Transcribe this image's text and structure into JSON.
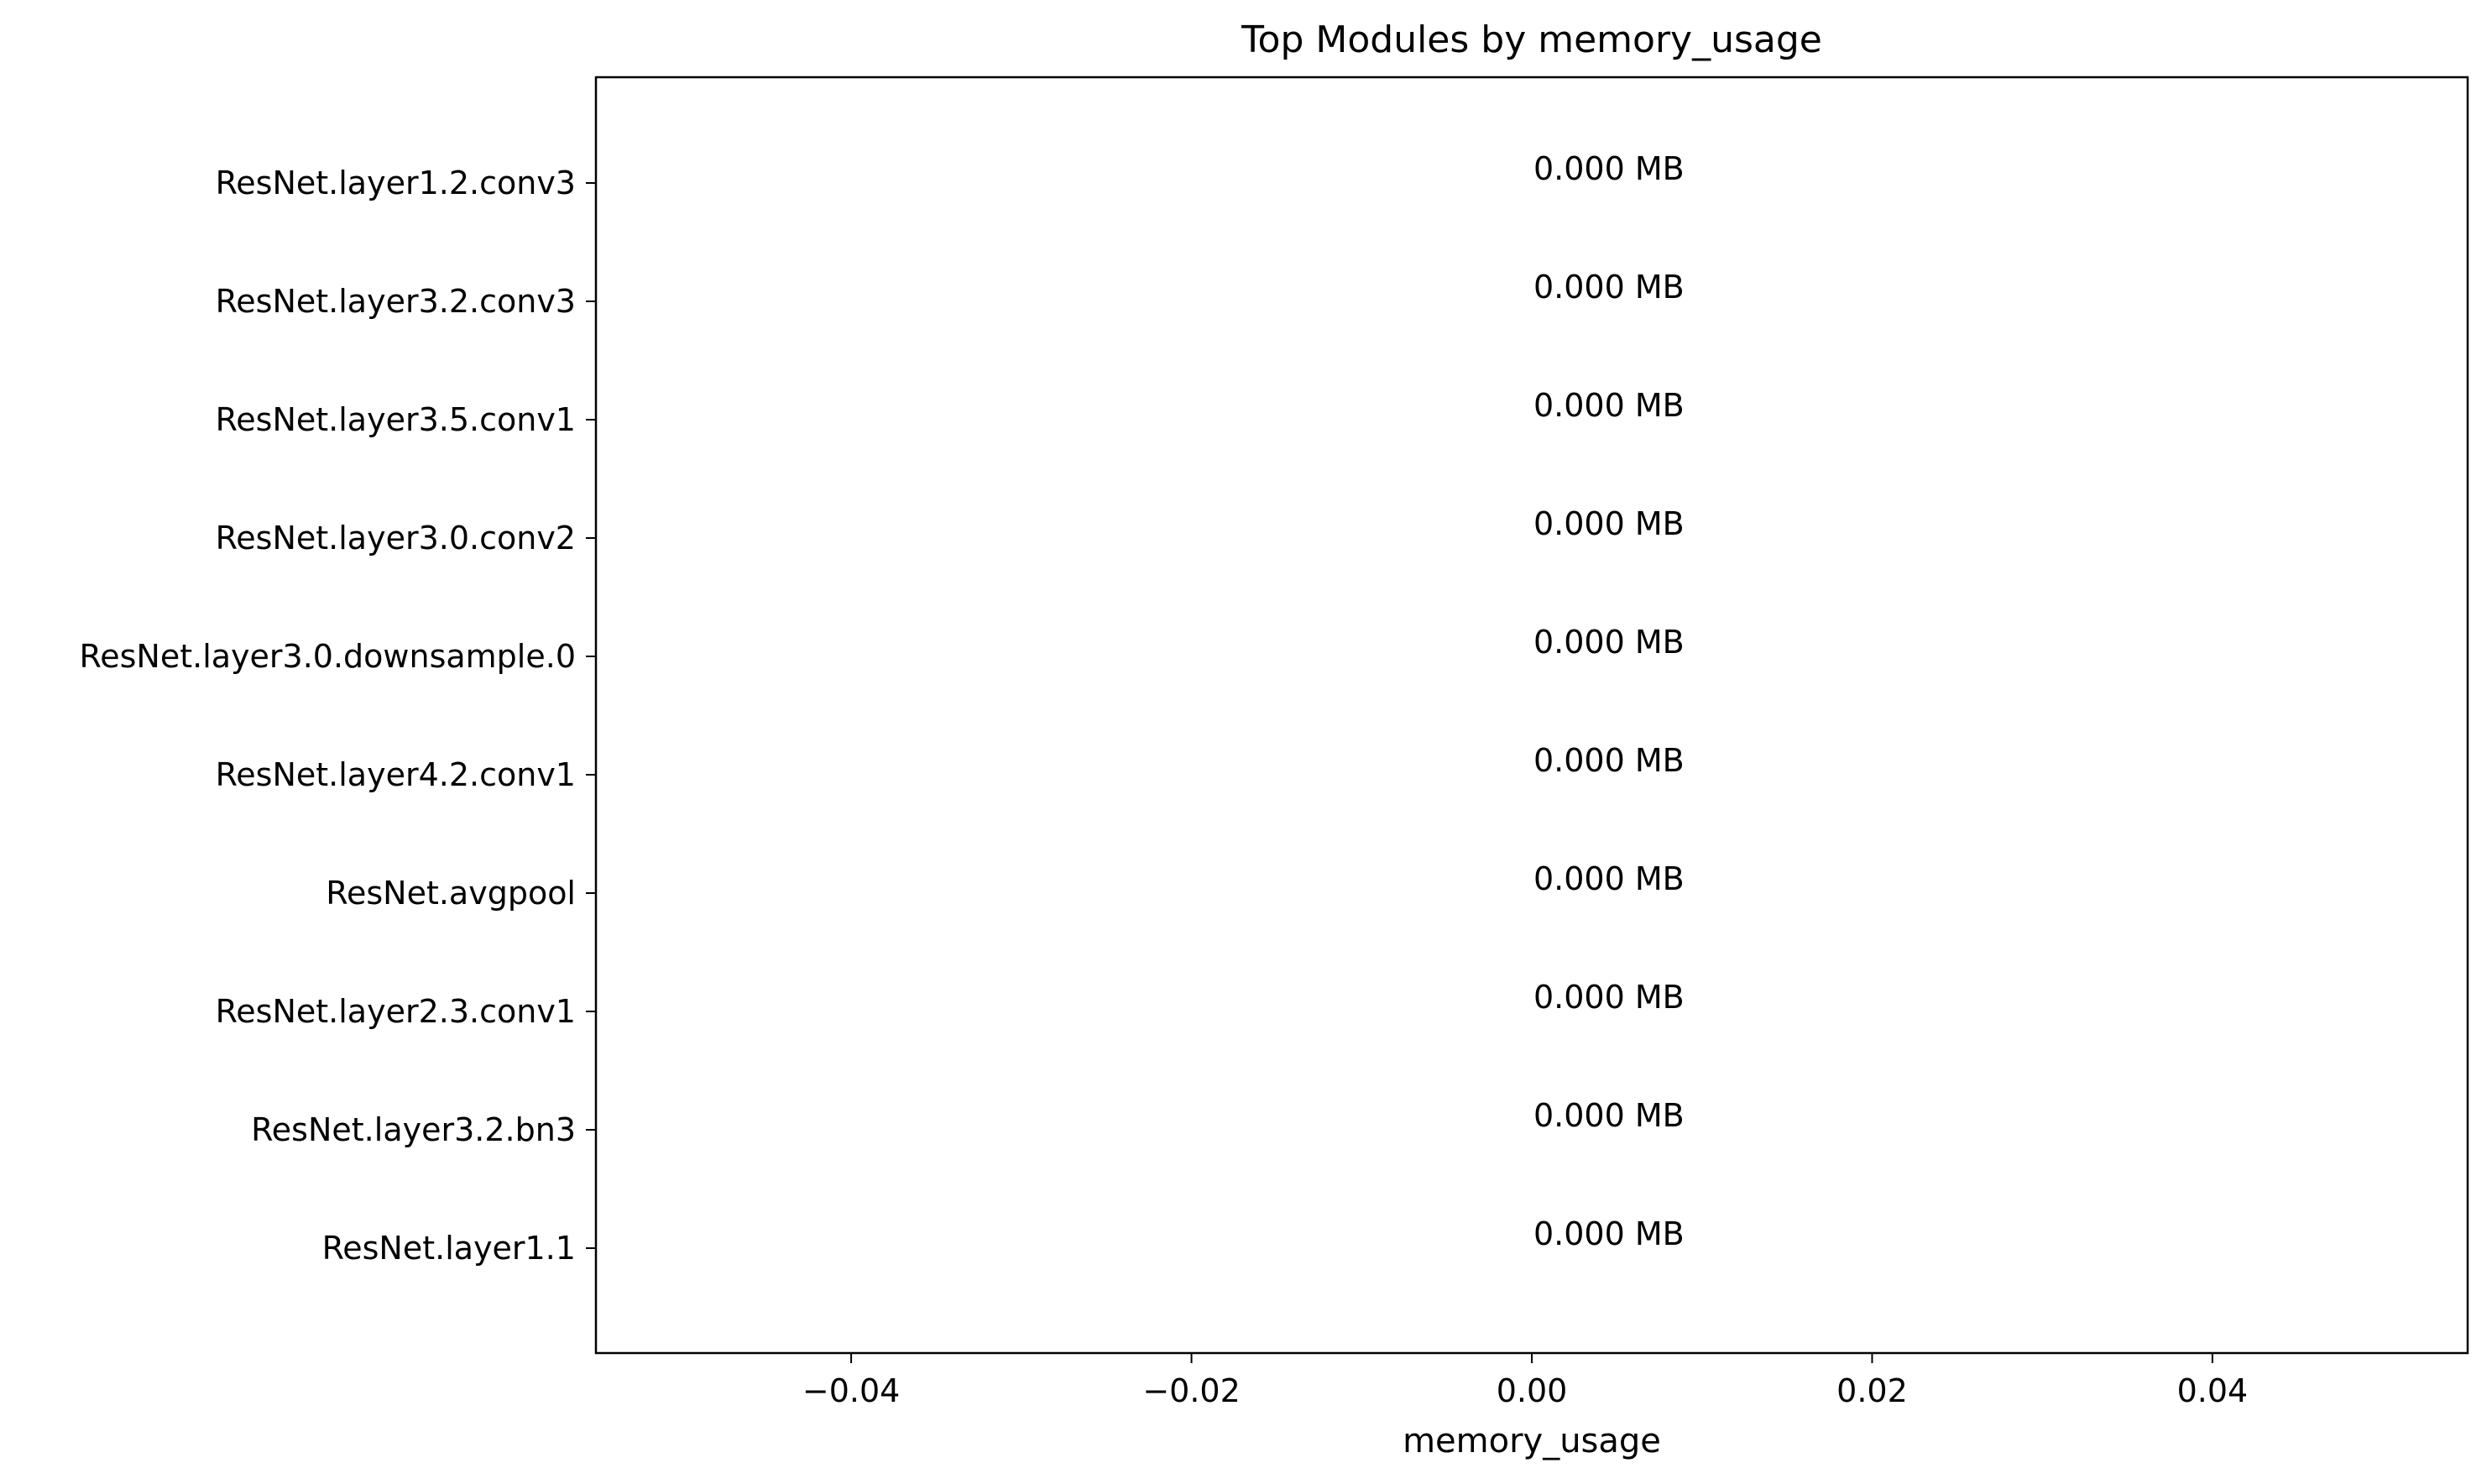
{
  "chart_data": {
    "type": "bar",
    "orientation": "horizontal",
    "title": "Top Modules by memory_usage",
    "xlabel": "memory_usage",
    "ylabel": "",
    "categories": [
      "ResNet.layer1.2.conv3",
      "ResNet.layer3.2.conv3",
      "ResNet.layer3.5.conv1",
      "ResNet.layer3.0.conv2",
      "ResNet.layer3.0.downsample.0",
      "ResNet.layer4.2.conv1",
      "ResNet.avgpool",
      "ResNet.layer2.3.conv1",
      "ResNet.layer3.2.bn3",
      "ResNet.layer1.1"
    ],
    "values": [
      0,
      0,
      0,
      0,
      0,
      0,
      0,
      0,
      0,
      0
    ],
    "data_labels": [
      "0.000 MB",
      "0.000 MB",
      "0.000 MB",
      "0.000 MB",
      "0.000 MB",
      "0.000 MB",
      "0.000 MB",
      "0.000 MB",
      "0.000 MB",
      "0.000 MB"
    ],
    "xlim": [
      -0.055,
      0.055
    ],
    "xticks": [
      -0.04,
      -0.02,
      0.0,
      0.02,
      0.04
    ],
    "xtick_labels": [
      "−0.04",
      "−0.02",
      "0.00",
      "0.02",
      "0.04"
    ],
    "grid": false,
    "bar_color": "#1f77b4"
  }
}
